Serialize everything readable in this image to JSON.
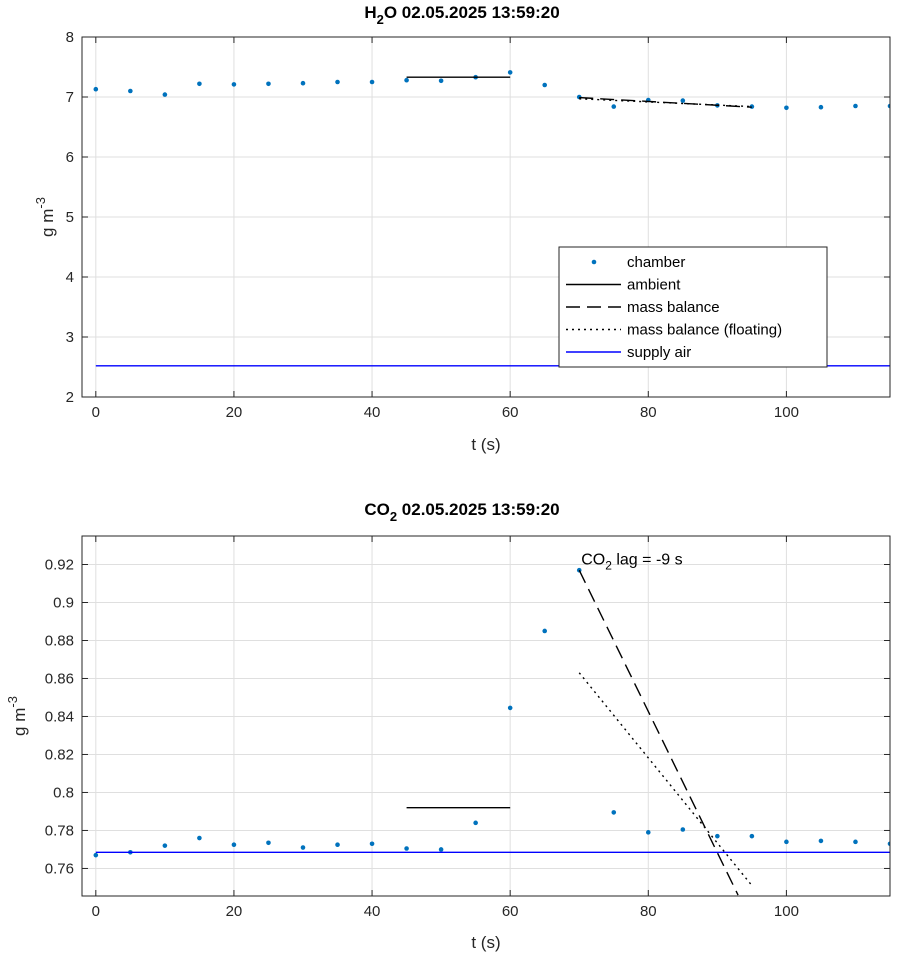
{
  "chart_data": [
    {
      "type": "scatter",
      "title": {
        "species": "H",
        "sub": "2",
        "species2": "O",
        "timestamp": "02.05.2025 13:59:20"
      },
      "xlabel": "t (s)",
      "ylabel": {
        "text": "g m",
        "sup": "-3"
      },
      "xlim": [
        -2,
        115
      ],
      "ylim": [
        2,
        8
      ],
      "xticks": [
        0,
        20,
        40,
        60,
        80,
        100
      ],
      "yticks": [
        2,
        3,
        4,
        5,
        6,
        7,
        8
      ],
      "grid": true,
      "legend_position": "lower-right",
      "series": [
        {
          "name": "chamber",
          "style": "dots",
          "color": "#0072bd",
          "x": [
            0,
            5,
            10,
            15,
            20,
            25,
            30,
            35,
            40,
            45,
            50,
            55,
            60,
            65,
            70,
            75,
            80,
            85,
            90,
            95,
            100,
            105,
            110,
            115
          ],
          "y": [
            7.13,
            7.1,
            7.04,
            7.22,
            7.21,
            7.22,
            7.23,
            7.25,
            7.25,
            7.28,
            7.27,
            7.33,
            7.41,
            7.2,
            7.0,
            6.84,
            6.95,
            6.94,
            6.86,
            6.84,
            6.82,
            6.83,
            6.85,
            6.85
          ]
        },
        {
          "name": "ambient",
          "style": "solid",
          "color": "#000000",
          "x": [
            45,
            60
          ],
          "y": [
            7.33,
            7.33
          ]
        },
        {
          "name": "mass balance",
          "style": "dashed",
          "color": "#000000",
          "x": [
            70,
            95
          ],
          "y": [
            6.99,
            6.83
          ]
        },
        {
          "name": "mass balance (floating)",
          "style": "dotted",
          "color": "#000000",
          "x": [
            70,
            95
          ],
          "y": [
            6.97,
            6.84
          ]
        },
        {
          "name": "supply air",
          "style": "solid",
          "color": "#0000ff",
          "x": [
            0,
            115
          ],
          "y": [
            2.52,
            2.52
          ]
        }
      ]
    },
    {
      "type": "scatter",
      "title": {
        "species": "CO",
        "sub": "2",
        "species2": "",
        "timestamp": "02.05.2025 13:59:20"
      },
      "xlabel": "t (s)",
      "ylabel": {
        "text": "g m",
        "sup": "-3"
      },
      "xlim": [
        -2,
        115
      ],
      "ylim": [
        0.7455,
        0.935
      ],
      "xticks": [
        0,
        20,
        40,
        60,
        80,
        100
      ],
      "yticks": [
        0.76,
        0.78,
        0.8,
        0.82,
        0.84,
        0.86,
        0.88,
        0.9,
        0.92
      ],
      "grid": true,
      "annotation": {
        "prefix": "CO",
        "sub": "2",
        "suffix": " lag = -9 s",
        "x": 70,
        "y": 0.918
      },
      "series": [
        {
          "name": "chamber",
          "style": "dots",
          "color": "#0072bd",
          "x": [
            0,
            5,
            10,
            15,
            20,
            25,
            30,
            35,
            40,
            45,
            50,
            55,
            60,
            65,
            70,
            75,
            80,
            85,
            90,
            95,
            100,
            105,
            110,
            115
          ],
          "y": [
            0.767,
            0.7685,
            0.772,
            0.776,
            0.7725,
            0.7735,
            0.771,
            0.7725,
            0.773,
            0.7705,
            0.77,
            0.784,
            0.8445,
            0.885,
            0.917,
            0.7895,
            0.779,
            0.7805,
            0.777,
            0.777,
            0.774,
            0.7745,
            0.774,
            0.773
          ]
        },
        {
          "name": "ambient",
          "style": "solid",
          "color": "#000000",
          "x": [
            45,
            60
          ],
          "y": [
            0.792,
            0.792
          ]
        },
        {
          "name": "mass balance",
          "style": "dashed",
          "color": "#000000",
          "x": [
            70,
            93
          ],
          "y": [
            0.917,
            0.746
          ]
        },
        {
          "name": "mass balance (floating)",
          "style": "dotted",
          "color": "#000000",
          "x": [
            70,
            95
          ],
          "y": [
            0.863,
            0.751
          ]
        },
        {
          "name": "supply air",
          "style": "solid",
          "color": "#0000ff",
          "x": [
            0,
            115
          ],
          "y": [
            0.7685,
            0.7685
          ]
        }
      ]
    }
  ]
}
